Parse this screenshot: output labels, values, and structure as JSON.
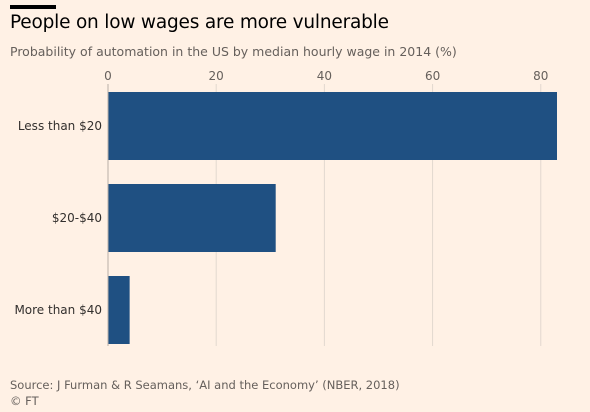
{
  "header": {
    "title": "People on low wages are more vulnerable",
    "subtitle": "Probability of automation in the US by median hourly wage in 2014 (%)"
  },
  "footer": {
    "source": "Source: J Furman & R Seamans, ‘AI and the Economy’ (NBER, 2018)",
    "credit": "© FT"
  },
  "colors": {
    "background": "#FFF1E5",
    "bar": "#1F5082",
    "grid": "#E2D8CF"
  },
  "chart_data": {
    "type": "bar",
    "orientation": "horizontal",
    "title": "People on low wages are more vulnerable",
    "subtitle": "Probability of automation in the US by median hourly wage in 2014 (%)",
    "categories": [
      "Less than $20",
      "$20-$40",
      "More than $40"
    ],
    "values": [
      83,
      31,
      4
    ],
    "xlim": [
      0,
      83
    ],
    "xticks": [
      0,
      20,
      40,
      60,
      80
    ],
    "xtick_labels": [
      "0",
      "20",
      "40",
      "60",
      "80"
    ],
    "x_axis_position": "top",
    "grid": true,
    "legend": "none"
  }
}
